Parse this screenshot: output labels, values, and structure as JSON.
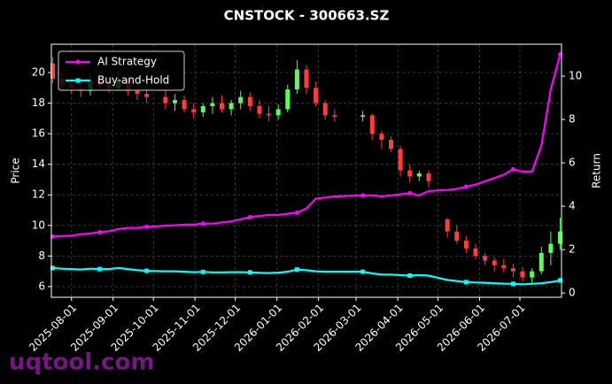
{
  "chart_data": {
    "type": "candlestick",
    "title": "CNSTOCK - 300663.SZ",
    "ylabel": "Price",
    "y2label": "Return",
    "xlim": [
      "2025-07-17",
      "2026-08-01"
    ],
    "xticks": [
      "2025-08-01",
      "2025-09-01",
      "2025-10-01",
      "2025-11-01",
      "2025-12-01",
      "2026-01-01",
      "2026-02-01",
      "2026-03-01",
      "2026-04-01",
      "2026-05-01",
      "2026-06-01",
      "2026-07-01"
    ],
    "ylim": [
      5.3,
      21.85
    ],
    "yticks": [
      6,
      8,
      10,
      12,
      14,
      16,
      18,
      20
    ],
    "y2lim": [
      -0.2,
      11.47
    ],
    "y2ticks": [
      0,
      2,
      4,
      6,
      8,
      10
    ],
    "grid": true,
    "legend": "upper left",
    "up_color": "#55ff55",
    "down_color": "#ff3b3b",
    "x": [
      "2025-07-18",
      "2025-07-25",
      "2025-08-01",
      "2025-08-08",
      "2025-08-15",
      "2025-08-22",
      "2025-08-29",
      "2025-09-05",
      "2025-09-12",
      "2025-09-19",
      "2025-09-26",
      "2025-10-10",
      "2025-10-17",
      "2025-10-24",
      "2025-10-31",
      "2025-11-07",
      "2025-11-14",
      "2025-11-21",
      "2025-11-28",
      "2025-12-05",
      "2025-12-12",
      "2025-12-19",
      "2025-12-26",
      "2026-01-02",
      "2026-01-09",
      "2026-01-16",
      "2026-01-23",
      "2026-01-30",
      "2026-02-06",
      "2026-02-13",
      "2026-03-06",
      "2026-03-13",
      "2026-03-20",
      "2026-03-27",
      "2026-04-03",
      "2026-04-10",
      "2026-04-17",
      "2026-04-24",
      "2026-05-08",
      "2026-05-15",
      "2026-05-22",
      "2026-05-29",
      "2026-06-05",
      "2026-06-12",
      "2026-06-19",
      "2026-06-26",
      "2026-07-03",
      "2026-07-10",
      "2026-07-17",
      "2026-07-24",
      "2026-07-31"
    ],
    "open": [
      20.6,
      19.6,
      19.2,
      19.0,
      18.8,
      19.5,
      19.2,
      19.0,
      19.6,
      18.8,
      18.6,
      18.4,
      18.0,
      18.2,
      17.6,
      17.4,
      17.8,
      18.0,
      17.6,
      18.0,
      18.4,
      17.8,
      17.3,
      17.2,
      17.6,
      18.9,
      20.2,
      19.0,
      18.0,
      17.2,
      17.1,
      17.2,
      16.0,
      15.6,
      15.0,
      13.6,
      13.2,
      13.4,
      10.4,
      9.6,
      9.0,
      8.5,
      8.0,
      7.7,
      7.4,
      7.2,
      7.0,
      6.6,
      7.0,
      8.2,
      8.8
    ],
    "high": [
      21.0,
      20.0,
      19.6,
      19.5,
      19.9,
      20.0,
      19.6,
      20.1,
      19.8,
      19.3,
      19.0,
      18.8,
      18.6,
      18.5,
      18.0,
      18.0,
      18.4,
      18.5,
      18.2,
      18.8,
      18.7,
      18.2,
      17.8,
      17.9,
      19.2,
      20.8,
      20.5,
      19.4,
      18.2,
      17.6,
      17.5,
      17.3,
      16.2,
      15.8,
      15.2,
      14.0,
      13.6,
      13.6,
      10.5,
      10.0,
      9.3,
      8.8,
      8.2,
      7.9,
      7.8,
      7.5,
      7.3,
      7.2,
      8.6,
      9.6,
      10.5
    ],
    "low": [
      19.3,
      18.8,
      18.6,
      18.4,
      18.5,
      18.9,
      18.7,
      18.8,
      18.5,
      18.2,
      18.0,
      17.6,
      17.5,
      17.4,
      17.0,
      17.1,
      17.3,
      17.4,
      17.2,
      17.6,
      17.5,
      17.0,
      16.8,
      16.9,
      17.4,
      18.6,
      18.6,
      17.8,
      16.9,
      16.8,
      16.8,
      15.6,
      15.0,
      14.8,
      13.2,
      12.8,
      12.9,
      12.5,
      9.2,
      8.8,
      8.2,
      7.8,
      7.4,
      7.0,
      6.9,
      6.6,
      6.3,
      6.2,
      6.8,
      7.4,
      8.4
    ],
    "close": [
      19.6,
      19.2,
      19.0,
      18.8,
      19.5,
      19.2,
      19.0,
      19.6,
      18.8,
      18.6,
      18.4,
      18.0,
      18.2,
      17.6,
      17.4,
      17.8,
      18.0,
      17.6,
      18.0,
      18.4,
      17.8,
      17.3,
      17.2,
      17.6,
      18.9,
      20.2,
      19.0,
      18.0,
      17.2,
      17.1,
      17.2,
      16.0,
      15.6,
      15.0,
      13.6,
      13.2,
      13.4,
      12.9,
      9.6,
      9.0,
      8.5,
      8.0,
      7.7,
      7.4,
      7.2,
      7.0,
      6.6,
      7.0,
      8.2,
      8.8,
      9.6
    ],
    "series": [
      {
        "name": "AI Strategy",
        "color": "#ff00ff",
        "axis": "y2",
        "values": [
          2.6,
          2.62,
          2.65,
          2.7,
          2.75,
          2.8,
          2.85,
          2.95,
          3.0,
          3.0,
          3.05,
          3.1,
          3.12,
          3.15,
          3.15,
          3.2,
          3.2,
          3.25,
          3.3,
          3.4,
          3.5,
          3.55,
          3.6,
          3.6,
          3.65,
          3.7,
          3.9,
          4.35,
          4.4,
          4.45,
          4.5,
          4.5,
          4.45,
          4.5,
          4.55,
          4.6,
          4.5,
          4.7,
          4.75,
          4.8,
          4.9,
          5.0,
          5.15,
          5.3,
          5.45,
          5.7,
          5.6,
          5.6,
          6.8,
          9.4,
          11.0
        ]
      },
      {
        "name": "Buy-and-Hold",
        "color": "#00ffff",
        "axis": "y2",
        "values": [
          1.15,
          1.12,
          1.1,
          1.08,
          1.12,
          1.1,
          1.1,
          1.15,
          1.1,
          1.05,
          1.02,
          1.0,
          1.0,
          0.98,
          0.96,
          0.97,
          0.95,
          0.95,
          0.96,
          0.96,
          0.95,
          0.93,
          0.92,
          0.94,
          0.98,
          1.08,
          1.05,
          1.0,
          0.98,
          0.98,
          0.98,
          0.9,
          0.85,
          0.85,
          0.82,
          0.8,
          0.82,
          0.8,
          0.6,
          0.55,
          0.5,
          0.48,
          0.47,
          0.45,
          0.43,
          0.42,
          0.4,
          0.42,
          0.45,
          0.5,
          0.58
        ]
      }
    ],
    "watermark": "uqtool.com"
  }
}
